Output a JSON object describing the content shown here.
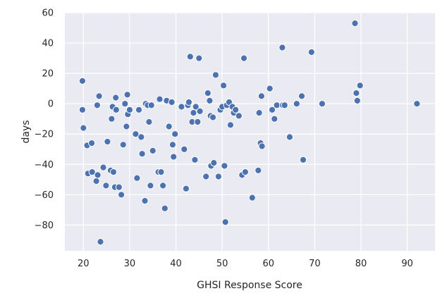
{
  "chart_data": {
    "type": "scatter",
    "title": "",
    "xlabel": "GHSI Response Score",
    "ylabel": "days",
    "xlim": [
      16,
      96
    ],
    "ylim": [
      -97,
      60
    ],
    "x_ticks": [
      20,
      30,
      40,
      50,
      60,
      70,
      80,
      90
    ],
    "y_ticks": [
      60,
      40,
      20,
      0,
      -20,
      -40,
      -60,
      -80
    ],
    "grid": true,
    "colors": {
      "background": "#eaeaf2",
      "point": "#4c72b0",
      "grid": "#ffffff"
    },
    "points": [
      [
        19.8,
        15
      ],
      [
        19.8,
        -4
      ],
      [
        20.0,
        -16
      ],
      [
        20.8,
        -27.5
      ],
      [
        21.0,
        -46
      ],
      [
        21.8,
        -26
      ],
      [
        21.9,
        -45
      ],
      [
        22.8,
        -51
      ],
      [
        23.0,
        -1
      ],
      [
        23.1,
        -47
      ],
      [
        23.4,
        5
      ],
      [
        23.7,
        -91
      ],
      [
        24.3,
        -42
      ],
      [
        24.9,
        -54
      ],
      [
        25.2,
        -25
      ],
      [
        25.9,
        -44
      ],
      [
        26.1,
        -10
      ],
      [
        26.3,
        -2
      ],
      [
        26.5,
        -45
      ],
      [
        26.8,
        -55
      ],
      [
        27.0,
        4
      ],
      [
        27.1,
        -4
      ],
      [
        27.7,
        -55
      ],
      [
        28.2,
        -60
      ],
      [
        28.6,
        -27
      ],
      [
        29.0,
        0
      ],
      [
        29.3,
        -15
      ],
      [
        29.5,
        6
      ],
      [
        29.6,
        -7
      ],
      [
        30.0,
        -4
      ],
      [
        31.3,
        -20
      ],
      [
        31.6,
        -49
      ],
      [
        32.0,
        -4
      ],
      [
        32.5,
        -22
      ],
      [
        32.7,
        -33
      ],
      [
        33.3,
        -64
      ],
      [
        33.5,
        0
      ],
      [
        33.9,
        -1
      ],
      [
        34.2,
        -12
      ],
      [
        34.5,
        -54
      ],
      [
        34.7,
        -1
      ],
      [
        35.0,
        -31
      ],
      [
        36.2,
        -45
      ],
      [
        36.5,
        3
      ],
      [
        36.8,
        -45
      ],
      [
        37.2,
        -54
      ],
      [
        37.6,
        -69
      ],
      [
        38.0,
        2
      ],
      [
        38.5,
        -15
      ],
      [
        39.1,
        1
      ],
      [
        39.3,
        -27
      ],
      [
        39.5,
        -35
      ],
      [
        39.8,
        -20
      ],
      [
        41.2,
        -2
      ],
      [
        41.8,
        -30
      ],
      [
        42.2,
        -56
      ],
      [
        42.6,
        -1
      ],
      [
        42.8,
        1
      ],
      [
        43.1,
        31
      ],
      [
        43.5,
        -12
      ],
      [
        43.8,
        -6
      ],
      [
        44.1,
        -37
      ],
      [
        44.3,
        -2
      ],
      [
        44.7,
        -12
      ],
      [
        45.0,
        30
      ],
      [
        45.2,
        -5
      ],
      [
        46.5,
        -48
      ],
      [
        46.9,
        7
      ],
      [
        47.3,
        2
      ],
      [
        47.5,
        -8
      ],
      [
        47.6,
        -41
      ],
      [
        48.0,
        -9
      ],
      [
        48.2,
        -39
      ],
      [
        48.6,
        19
      ],
      [
        49.2,
        -48
      ],
      [
        49.6,
        -4
      ],
      [
        50.0,
        -2
      ],
      [
        50.3,
        12
      ],
      [
        50.5,
        -41
      ],
      [
        50.7,
        -78
      ],
      [
        51.0,
        -1
      ],
      [
        51.5,
        1
      ],
      [
        51.8,
        -14
      ],
      [
        52.2,
        -2
      ],
      [
        52.5,
        -6
      ],
      [
        52.9,
        -4
      ],
      [
        53.6,
        -8
      ],
      [
        54.3,
        -47
      ],
      [
        54.7,
        30
      ],
      [
        55.0,
        -45
      ],
      [
        56.5,
        -62
      ],
      [
        57.8,
        -44
      ],
      [
        58.0,
        -6
      ],
      [
        58.3,
        -26
      ],
      [
        58.5,
        5
      ],
      [
        58.6,
        -28
      ],
      [
        60.3,
        10
      ],
      [
        60.8,
        -4
      ],
      [
        61.3,
        -10
      ],
      [
        61.8,
        -1
      ],
      [
        63.0,
        37
      ],
      [
        63.1,
        -1
      ],
      [
        63.5,
        -1
      ],
      [
        64.6,
        -22
      ],
      [
        66.1,
        0
      ],
      [
        67.2,
        5
      ],
      [
        67.5,
        -37
      ],
      [
        69.3,
        34
      ],
      [
        71.6,
        0
      ],
      [
        78.7,
        53
      ],
      [
        79.0,
        7
      ],
      [
        79.2,
        2
      ],
      [
        79.8,
        12
      ],
      [
        92.1,
        0
      ]
    ]
  }
}
